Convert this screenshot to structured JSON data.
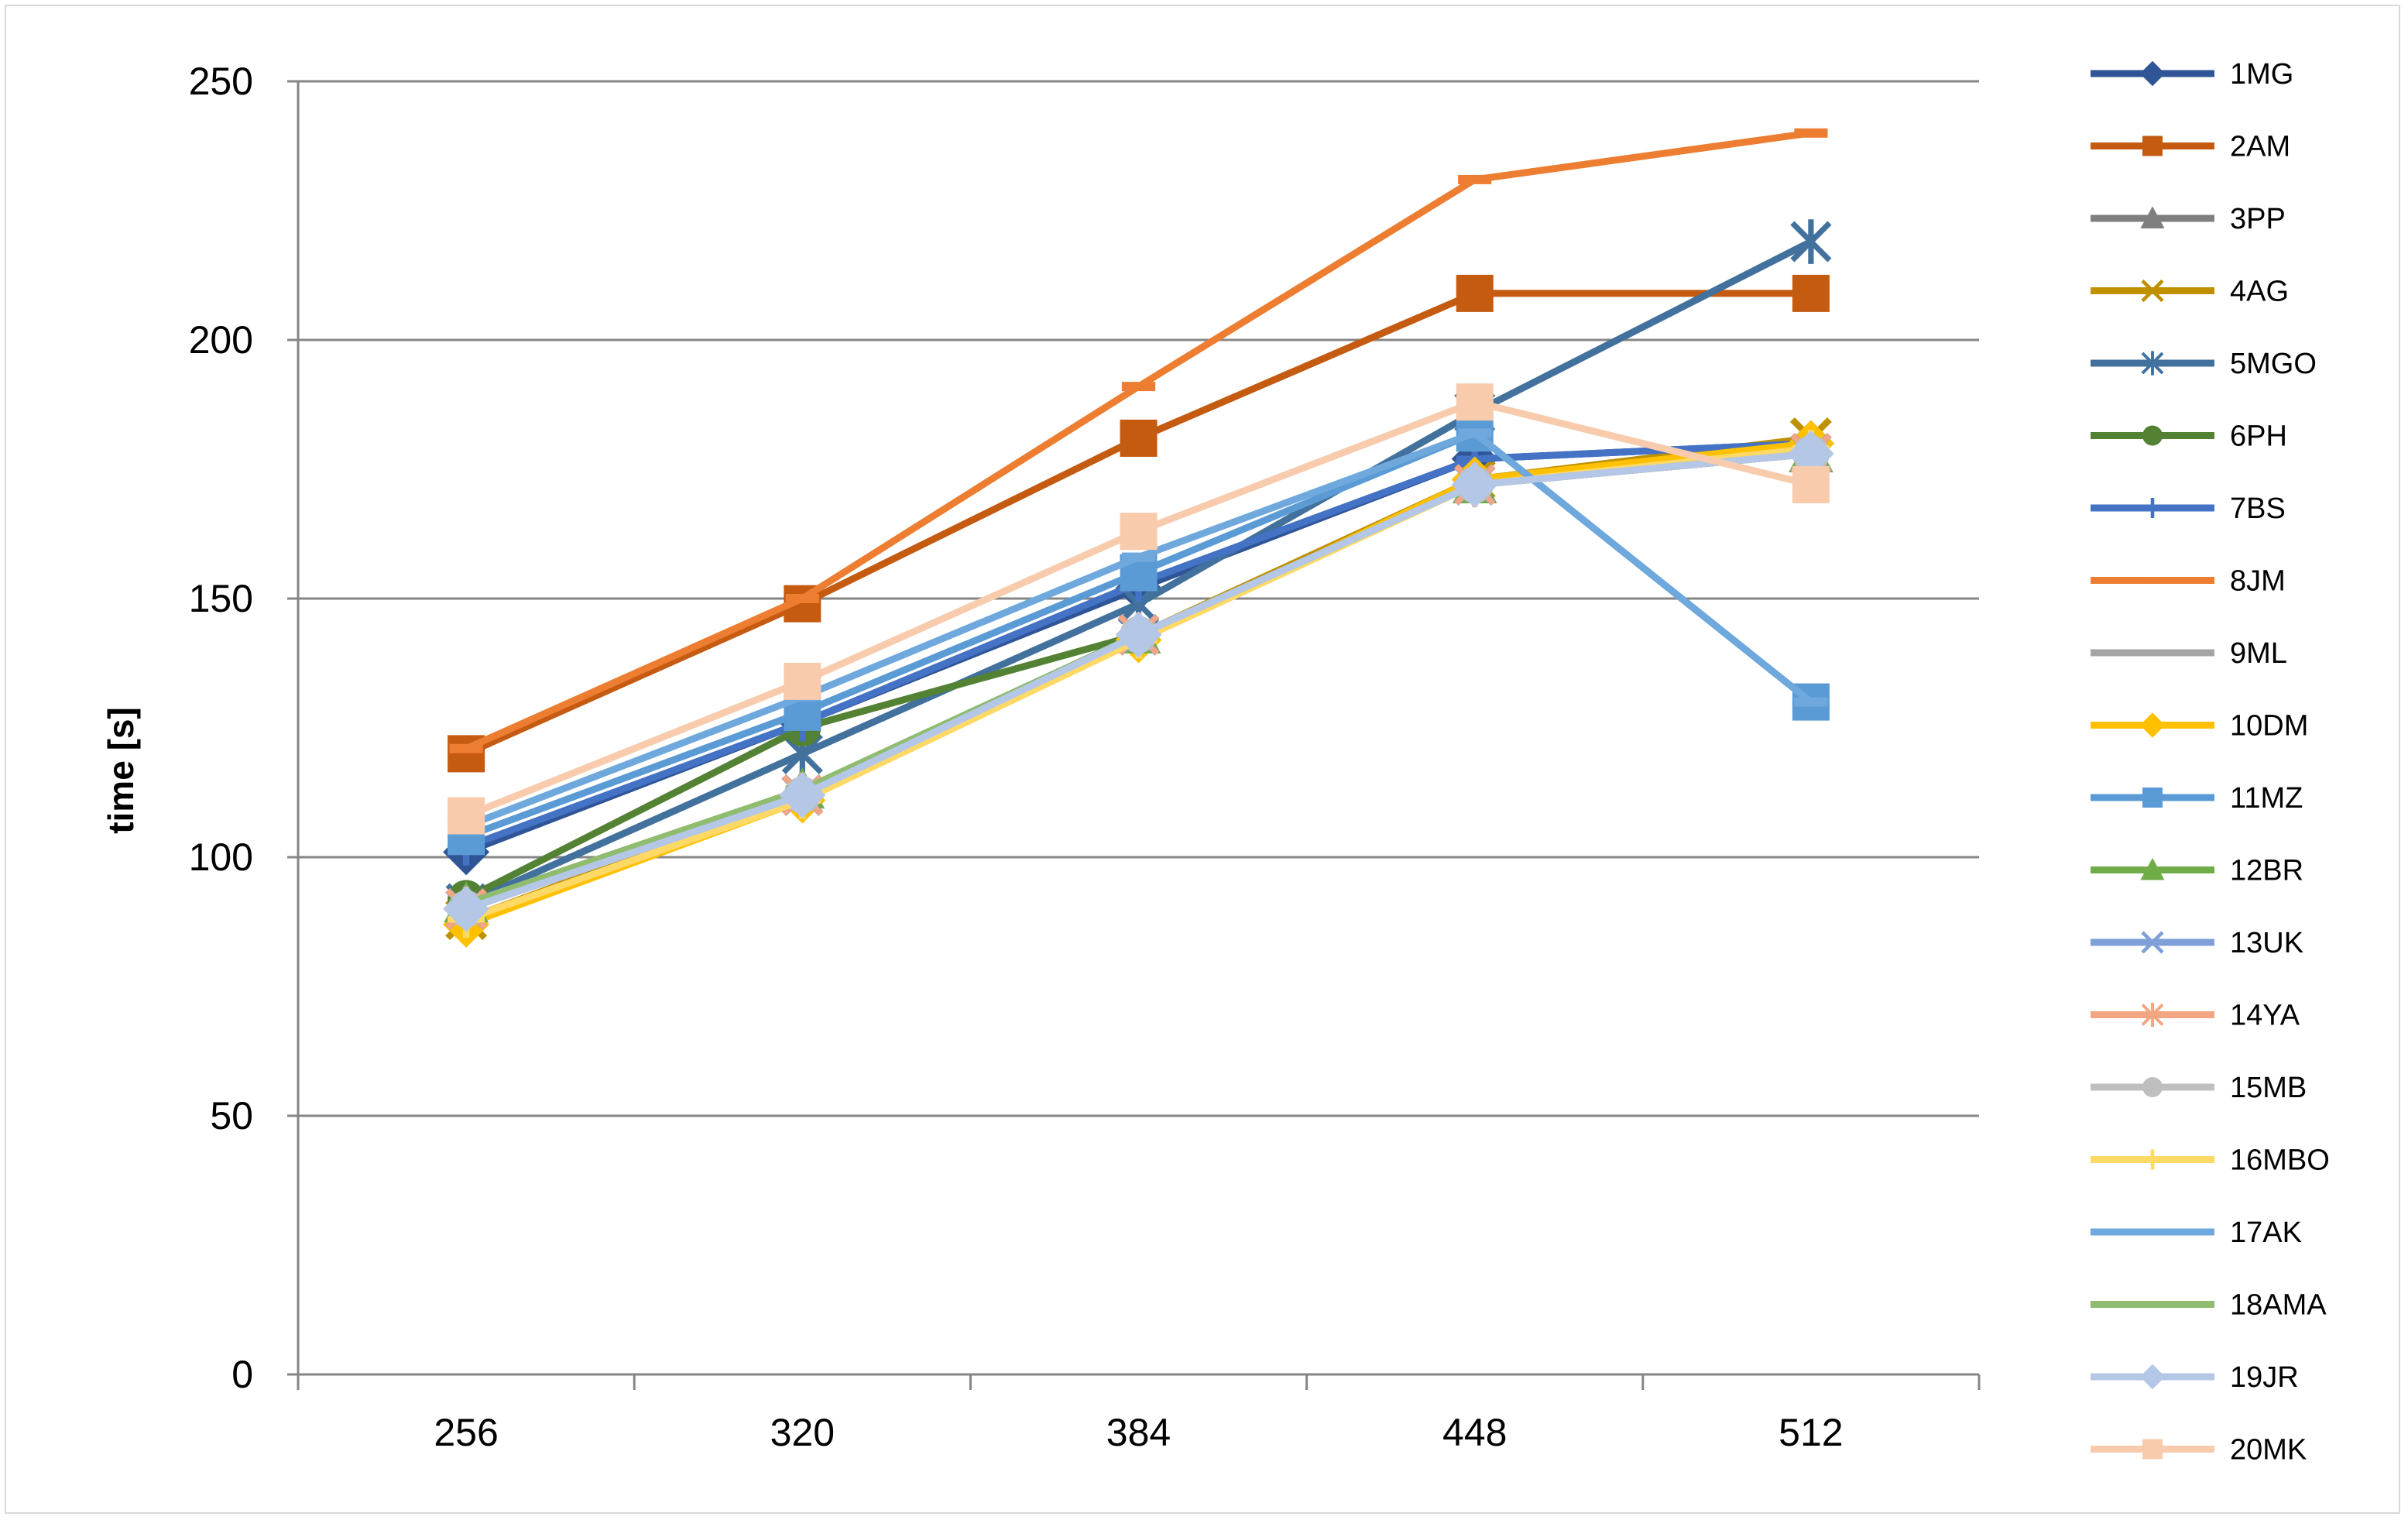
{
  "chart_data": {
    "type": "line",
    "title": "",
    "xlabel": "",
    "ylabel": "time [s]",
    "x": [
      "256",
      "320",
      "384",
      "448",
      "512"
    ],
    "ylim": [
      0,
      250
    ],
    "yticks": [
      0,
      50,
      100,
      150,
      200,
      250
    ],
    "grid": "horizontal",
    "legend_position": "right",
    "series": [
      {
        "name": "1MG",
        "color": "#2F5597",
        "marker": "diamond",
        "values": [
          101,
          126,
          152,
          177,
          180
        ]
      },
      {
        "name": "2AM",
        "color": "#C55A11",
        "marker": "square",
        "values": [
          120,
          149,
          181,
          209,
          209
        ]
      },
      {
        "name": "3PP",
        "color": "#7F7F7F",
        "marker": "triangle",
        "values": [
          91,
          113,
          143,
          172,
          178
        ]
      },
      {
        "name": "4AG",
        "color": "#BF9000",
        "marker": "x",
        "values": [
          88,
          112,
          143,
          173,
          181
        ]
      },
      {
        "name": "5MGO",
        "color": "#41719C",
        "marker": "star",
        "values": [
          91,
          120,
          149,
          186,
          219
        ]
      },
      {
        "name": "6PH",
        "color": "#548235",
        "marker": "circle",
        "values": [
          92,
          125,
          143,
          172,
          178
        ]
      },
      {
        "name": "7BS",
        "color": "#4472C4",
        "marker": "plus",
        "values": [
          102,
          126,
          153,
          177,
          180
        ]
      },
      {
        "name": "8JM",
        "color": "#ED7D31",
        "marker": "dash",
        "values": [
          121,
          150,
          191,
          231,
          240
        ]
      },
      {
        "name": "9ML",
        "color": "#A5A5A5",
        "marker": "dash",
        "values": [
          90,
          112,
          143,
          172,
          178
        ]
      },
      {
        "name": "10DM",
        "color": "#FFC000",
        "marker": "diamond",
        "values": [
          87,
          111,
          142,
          173,
          180
        ]
      },
      {
        "name": "11MZ",
        "color": "#5B9BD5",
        "marker": "square",
        "values": [
          104,
          128,
          155,
          182,
          130
        ]
      },
      {
        "name": "12BR",
        "color": "#70AD47",
        "marker": "triangle",
        "values": [
          91,
          113,
          143,
          172,
          178
        ]
      },
      {
        "name": "13UK",
        "color": "#7F9FD8",
        "marker": "x",
        "values": [
          90,
          112,
          143,
          172,
          178
        ]
      },
      {
        "name": "14YA",
        "color": "#F4A582",
        "marker": "star",
        "values": [
          90,
          112,
          143,
          172,
          178
        ]
      },
      {
        "name": "15MB",
        "color": "#BFBFBF",
        "marker": "circle",
        "values": [
          90,
          112,
          143,
          172,
          178
        ]
      },
      {
        "name": "16MBO",
        "color": "#FFD966",
        "marker": "plus",
        "values": [
          88,
          111,
          142,
          172,
          179
        ]
      },
      {
        "name": "17AK",
        "color": "#6FA8DC",
        "marker": "dash",
        "values": [
          106,
          131,
          158,
          182,
          130
        ]
      },
      {
        "name": "18AMA",
        "color": "#8FBC6F",
        "marker": "dash",
        "values": [
          91,
          113,
          143,
          172,
          178
        ]
      },
      {
        "name": "19JR",
        "color": "#B4C7E7",
        "marker": "diamond",
        "values": [
          90,
          112,
          143,
          172,
          178
        ]
      },
      {
        "name": "20MK",
        "color": "#F8CBAD",
        "marker": "square",
        "values": [
          108,
          134,
          163,
          188,
          172
        ]
      }
    ]
  }
}
